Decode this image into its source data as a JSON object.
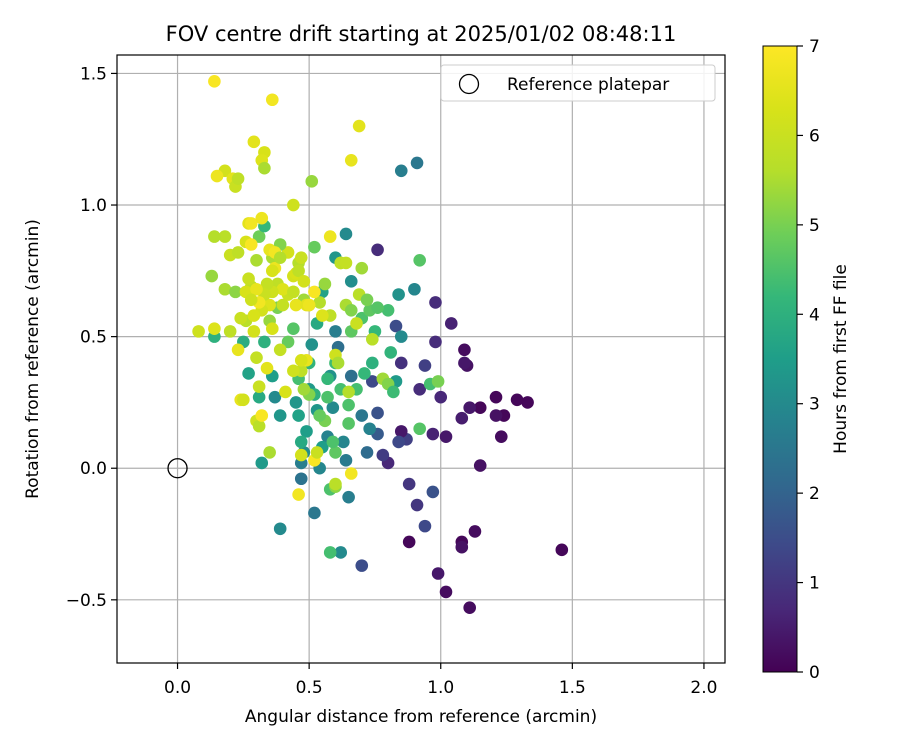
{
  "chart_data": {
    "type": "scatter",
    "title": "FOV centre drift starting at 2025/01/02 08:48:11",
    "xlabel": "Angular distance from reference (arcmin)",
    "ylabel": "Rotation from reference (arcmin)",
    "xlim": [
      -0.23,
      2.08
    ],
    "ylim": [
      -0.74,
      1.57
    ],
    "xticks": [
      0.0,
      0.5,
      1.0,
      1.5,
      2.0
    ],
    "xtick_labels": [
      "0.0",
      "0.5",
      "1.0",
      "1.5",
      "2.0"
    ],
    "yticks": [
      -0.5,
      0.0,
      0.5,
      1.0,
      1.5
    ],
    "ytick_labels": [
      "−0.5",
      "0.0",
      "0.5",
      "1.0",
      "1.5"
    ],
    "grid": true,
    "legend": {
      "placement": "top-right",
      "entries": [
        "Reference platepar"
      ]
    },
    "reference_point": {
      "x": 0.0,
      "y": 0.0
    },
    "colorbar": {
      "label": "Hours from first FF file",
      "min": 0,
      "max": 7,
      "ticks": [
        0,
        1,
        2,
        3,
        4,
        5,
        6,
        7
      ],
      "tick_labels": [
        "0",
        "1",
        "2",
        "3",
        "4",
        "5",
        "6",
        "7"
      ],
      "colormap": "viridis"
    },
    "points": [
      [
        1.46,
        -0.31,
        0.1
      ],
      [
        1.33,
        0.25,
        0.1
      ],
      [
        1.29,
        0.26,
        0.1
      ],
      [
        1.24,
        0.2,
        0.1
      ],
      [
        1.23,
        0.12,
        0.2
      ],
      [
        1.21,
        0.27,
        0.1
      ],
      [
        1.21,
        0.2,
        0.3
      ],
      [
        1.15,
        0.23,
        0.1
      ],
      [
        1.15,
        0.01,
        0.3
      ],
      [
        1.13,
        -0.24,
        0.2
      ],
      [
        1.11,
        -0.53,
        0.2
      ],
      [
        1.11,
        0.23,
        0.4
      ],
      [
        1.1,
        0.39,
        0.3
      ],
      [
        1.09,
        0.4,
        0.4
      ],
      [
        1.09,
        0.45,
        0.2
      ],
      [
        1.08,
        -0.28,
        0.1
      ],
      [
        1.08,
        -0.3,
        0.3
      ],
      [
        1.08,
        0.19,
        0.5
      ],
      [
        1.04,
        0.55,
        0.6
      ],
      [
        1.02,
        -0.47,
        0.2
      ],
      [
        1.02,
        0.12,
        0.4
      ],
      [
        1.0,
        0.27,
        0.7
      ],
      [
        0.99,
        -0.4,
        0.4
      ],
      [
        0.98,
        0.48,
        0.8
      ],
      [
        0.98,
        0.63,
        0.8
      ],
      [
        0.97,
        -0.09,
        1.6
      ],
      [
        0.97,
        0.13,
        0.6
      ],
      [
        0.94,
        0.39,
        1.2
      ],
      [
        0.94,
        -0.22,
        1.4
      ],
      [
        0.92,
        0.3,
        0.8
      ],
      [
        0.91,
        -0.14,
        1.0
      ],
      [
        0.88,
        -0.06,
        1.0
      ],
      [
        0.88,
        -0.28,
        0.1
      ],
      [
        0.87,
        0.11,
        1.2
      ],
      [
        0.85,
        0.14,
        0.4
      ],
      [
        0.85,
        0.4,
        0.9
      ],
      [
        0.84,
        0.1,
        1.4
      ],
      [
        0.83,
        0.54,
        1.5
      ],
      [
        0.8,
        0.02,
        0.7
      ],
      [
        0.78,
        0.05,
        1.1
      ],
      [
        0.76,
        0.13,
        1.8
      ],
      [
        0.76,
        0.21,
        1.6
      ],
      [
        0.76,
        0.83,
        0.8
      ],
      [
        0.74,
        0.33,
        1.4
      ],
      [
        0.73,
        0.15,
        2.8
      ],
      [
        0.72,
        0.06,
        2.2
      ],
      [
        0.7,
        -0.37,
        1.5
      ],
      [
        0.7,
        0.2,
        2.5
      ],
      [
        0.66,
        0.35,
        2.3
      ],
      [
        0.65,
        -0.11,
        2.7
      ],
      [
        0.64,
        0.03,
        2.6
      ],
      [
        0.63,
        0.1,
        2.9
      ],
      [
        0.62,
        -0.32,
        3.0
      ],
      [
        0.61,
        0.46,
        2.3
      ],
      [
        0.6,
        0.52,
        2.7
      ],
      [
        0.59,
        0.23,
        3.0
      ],
      [
        0.58,
        0.35,
        3.2
      ],
      [
        0.57,
        0.12,
        2.8
      ],
      [
        0.55,
        0.08,
        3.5
      ],
      [
        0.54,
        0.0,
        2.9
      ],
      [
        0.53,
        0.22,
        3.3
      ],
      [
        0.52,
        -0.17,
        2.5
      ],
      [
        0.51,
        0.47,
        3.2
      ],
      [
        0.5,
        0.3,
        3.4
      ],
      [
        0.49,
        0.14,
        3.5
      ],
      [
        0.48,
        0.06,
        3.1
      ],
      [
        0.47,
        0.02,
        2.7
      ],
      [
        0.47,
        -0.04,
        2.4
      ],
      [
        0.47,
        0.1,
        3.8
      ],
      [
        0.46,
        0.2,
        3.6
      ],
      [
        0.45,
        0.25,
        3.3
      ],
      [
        0.39,
        0.2,
        3.3
      ],
      [
        0.37,
        0.27,
        3.0
      ],
      [
        0.36,
        0.35,
        3.5
      ],
      [
        0.32,
        0.02,
        3.4
      ],
      [
        0.39,
        -0.23,
        3.0
      ],
      [
        0.52,
        0.28,
        4.0
      ],
      [
        0.57,
        0.27,
        4.5
      ],
      [
        0.57,
        0.34,
        4.2
      ],
      [
        0.6,
        0.4,
        4.3
      ],
      [
        0.62,
        0.3,
        4.4
      ],
      [
        0.65,
        0.24,
        4.5
      ],
      [
        0.65,
        0.17,
        4.6
      ],
      [
        0.6,
        0.06,
        4.7
      ],
      [
        0.58,
        -0.08,
        4.5
      ],
      [
        0.58,
        -0.32,
        4.4
      ],
      [
        0.6,
        -0.07,
        5.2
      ],
      [
        0.66,
        0.52,
        4.7
      ],
      [
        0.7,
        0.57,
        4.5
      ],
      [
        0.73,
        0.6,
        4.7
      ],
      [
        0.75,
        0.52,
        4.2
      ],
      [
        0.8,
        0.6,
        4.4
      ],
      [
        0.84,
        0.66,
        3.2
      ],
      [
        0.85,
        0.5,
        3.0
      ],
      [
        0.83,
        0.33,
        3.4
      ],
      [
        0.9,
        0.68,
        2.9
      ],
      [
        0.92,
        0.79,
        4.6
      ],
      [
        0.91,
        1.16,
        2.5
      ],
      [
        0.85,
        1.13,
        2.7
      ],
      [
        0.64,
        0.89,
        3.0
      ],
      [
        0.66,
        0.71,
        3.1
      ],
      [
        0.6,
        0.8,
        3.3
      ],
      [
        0.55,
        0.67,
        3.6
      ],
      [
        0.53,
        0.55,
        3.8
      ],
      [
        0.5,
        0.4,
        4.1
      ],
      [
        0.46,
        0.34,
        4.4
      ],
      [
        0.44,
        0.53,
        4.6
      ],
      [
        0.42,
        0.48,
        4.8
      ],
      [
        0.38,
        0.61,
        5.0
      ],
      [
        0.35,
        0.56,
        5.3
      ],
      [
        0.33,
        0.48,
        4.0
      ],
      [
        0.31,
        0.27,
        3.8
      ],
      [
        0.27,
        0.36,
        3.6
      ],
      [
        0.25,
        0.48,
        3.9
      ],
      [
        0.14,
        0.5,
        4.0
      ],
      [
        0.13,
        0.73,
        5.3
      ],
      [
        0.18,
        0.68,
        5.5
      ],
      [
        0.22,
        0.67,
        5.2
      ],
      [
        0.26,
        0.56,
        5.7
      ],
      [
        0.28,
        0.69,
        5.8
      ],
      [
        0.3,
        0.79,
        5.5
      ],
      [
        0.31,
        0.88,
        4.9
      ],
      [
        0.33,
        0.92,
        4.2
      ],
      [
        0.36,
        0.8,
        5.5
      ],
      [
        0.38,
        0.7,
        5.8
      ],
      [
        0.4,
        0.62,
        5.9
      ],
      [
        0.42,
        0.66,
        6.0
      ],
      [
        0.44,
        0.73,
        6.2
      ],
      [
        0.46,
        0.78,
        5.6
      ],
      [
        0.48,
        0.64,
        5.4
      ],
      [
        0.5,
        0.62,
        5.9
      ],
      [
        0.52,
        0.84,
        4.8
      ],
      [
        0.54,
        0.63,
        5.6
      ],
      [
        0.56,
        0.7,
        5.3
      ],
      [
        0.58,
        0.58,
        5.8
      ],
      [
        0.6,
        0.43,
        6.1
      ],
      [
        0.62,
        0.78,
        6.3
      ],
      [
        0.64,
        0.62,
        5.5
      ],
      [
        0.66,
        0.6,
        5.1
      ],
      [
        0.68,
        0.55,
        6.0
      ],
      [
        0.69,
        0.66,
        5.7
      ],
      [
        0.7,
        0.76,
        5.4
      ],
      [
        0.72,
        0.64,
        5.0
      ],
      [
        0.74,
        0.49,
        5.7
      ],
      [
        0.76,
        0.61,
        4.6
      ],
      [
        0.78,
        0.34,
        5.4
      ],
      [
        0.8,
        0.32,
        5.1
      ],
      [
        0.82,
        0.29,
        4.3
      ],
      [
        0.92,
        0.15,
        4.6
      ],
      [
        0.96,
        0.32,
        4.4
      ],
      [
        0.99,
        0.33,
        5.0
      ],
      [
        0.81,
        0.44,
        4.1
      ],
      [
        0.74,
        0.4,
        4.0
      ],
      [
        0.71,
        0.36,
        4.2
      ],
      [
        0.68,
        0.3,
        4.4
      ],
      [
        0.65,
        0.29,
        5.6
      ],
      [
        0.61,
        0.4,
        5.5
      ],
      [
        0.59,
        0.1,
        4.5
      ],
      [
        0.56,
        0.18,
        5.0
      ],
      [
        0.54,
        0.2,
        4.8
      ],
      [
        0.5,
        0.28,
        5.1
      ],
      [
        0.48,
        0.3,
        5.4
      ],
      [
        0.47,
        0.37,
        5.8
      ],
      [
        0.44,
        0.37,
        6.1
      ],
      [
        0.41,
        0.29,
        6.3
      ],
      [
        0.39,
        0.45,
        5.9
      ],
      [
        0.36,
        0.53,
        6.3
      ],
      [
        0.34,
        0.38,
        6.5
      ],
      [
        0.31,
        0.31,
        6.0
      ],
      [
        0.3,
        0.42,
        5.9
      ],
      [
        0.29,
        0.52,
        6.2
      ],
      [
        0.26,
        0.67,
        6.3
      ],
      [
        0.24,
        0.57,
        6.0
      ],
      [
        0.23,
        0.45,
        6.6
      ],
      [
        0.2,
        0.52,
        5.8
      ],
      [
        0.18,
        0.88,
        5.7
      ],
      [
        0.14,
        0.88,
        5.6
      ],
      [
        0.14,
        0.53,
        6.4
      ],
      [
        0.08,
        0.52,
        6.1
      ],
      [
        0.2,
        0.81,
        6.0
      ],
      [
        0.23,
        0.82,
        5.8
      ],
      [
        0.24,
        0.26,
        6.6
      ],
      [
        0.25,
        0.26,
        6.2
      ],
      [
        0.3,
        0.18,
        6.1
      ],
      [
        0.31,
        0.16,
        5.7
      ],
      [
        0.32,
        0.2,
        6.9
      ],
      [
        0.35,
        0.06,
        5.5
      ],
      [
        0.46,
        -0.1,
        6.8
      ],
      [
        0.52,
        0.03,
        6.9
      ],
      [
        0.53,
        0.06,
        6.0
      ],
      [
        0.6,
        -0.06,
        5.7
      ],
      [
        0.66,
        -0.02,
        6.8
      ],
      [
        0.45,
        0.74,
        6.3
      ],
      [
        0.47,
        0.8,
        6.0
      ],
      [
        0.45,
        0.62,
        6.6
      ],
      [
        0.44,
        0.67,
        6.2
      ],
      [
        0.42,
        0.82,
        6.2
      ],
      [
        0.4,
        0.68,
        6.4
      ],
      [
        0.39,
        0.85,
        5.1
      ],
      [
        0.37,
        0.76,
        6.7
      ],
      [
        0.36,
        0.75,
        6.3
      ],
      [
        0.36,
        0.67,
        6.1
      ],
      [
        0.35,
        0.62,
        6.4
      ],
      [
        0.34,
        0.7,
        5.9
      ],
      [
        0.33,
        0.66,
        6.0
      ],
      [
        0.32,
        0.6,
        6.2
      ],
      [
        0.31,
        0.63,
        6.8
      ],
      [
        0.3,
        0.68,
        6.6
      ],
      [
        0.29,
        0.58,
        6.3
      ],
      [
        0.28,
        0.64,
        6.1
      ],
      [
        0.27,
        0.72,
        6.0
      ],
      [
        0.26,
        0.86,
        6.3
      ],
      [
        0.27,
        0.93,
        6.5
      ],
      [
        0.28,
        0.85,
        6.9
      ],
      [
        0.28,
        0.93,
        6.8
      ],
      [
        0.32,
        0.95,
        6.7
      ],
      [
        0.35,
        0.83,
        6.6
      ],
      [
        0.37,
        0.82,
        6.8
      ],
      [
        0.39,
        0.8,
        5.6
      ],
      [
        0.44,
        1.0,
        6.1
      ],
      [
        0.44,
        0.67,
        5.9
      ],
      [
        0.46,
        0.75,
        5.8
      ],
      [
        0.48,
        0.71,
        6.2
      ],
      [
        0.49,
        0.62,
        6.5
      ],
      [
        0.5,
        0.62,
        6.7
      ],
      [
        0.52,
        0.67,
        6.9
      ],
      [
        0.55,
        0.58,
        6.4
      ],
      [
        0.58,
        0.88,
        6.7
      ],
      [
        0.62,
        0.78,
        5.8
      ],
      [
        0.64,
        0.78,
        5.9
      ],
      [
        0.49,
        0.41,
        6.6
      ],
      [
        0.47,
        0.41,
        6.3
      ],
      [
        0.14,
        1.47,
        6.9
      ],
      [
        0.36,
        1.4,
        6.8
      ],
      [
        0.29,
        1.24,
        6.5
      ],
      [
        0.33,
        1.2,
        6.3
      ],
      [
        0.32,
        1.17,
        6.4
      ],
      [
        0.33,
        1.14,
        5.5
      ],
      [
        0.18,
        1.13,
        6.2
      ],
      [
        0.15,
        1.11,
        6.7
      ],
      [
        0.21,
        1.1,
        6.5
      ],
      [
        0.22,
        1.07,
        6.0
      ],
      [
        0.23,
        1.1,
        5.8
      ],
      [
        0.51,
        1.09,
        5.3
      ],
      [
        0.66,
        1.17,
        6.6
      ],
      [
        0.69,
        1.3,
        6.5
      ],
      [
        0.47,
        0.05,
        6.2
      ]
    ]
  }
}
